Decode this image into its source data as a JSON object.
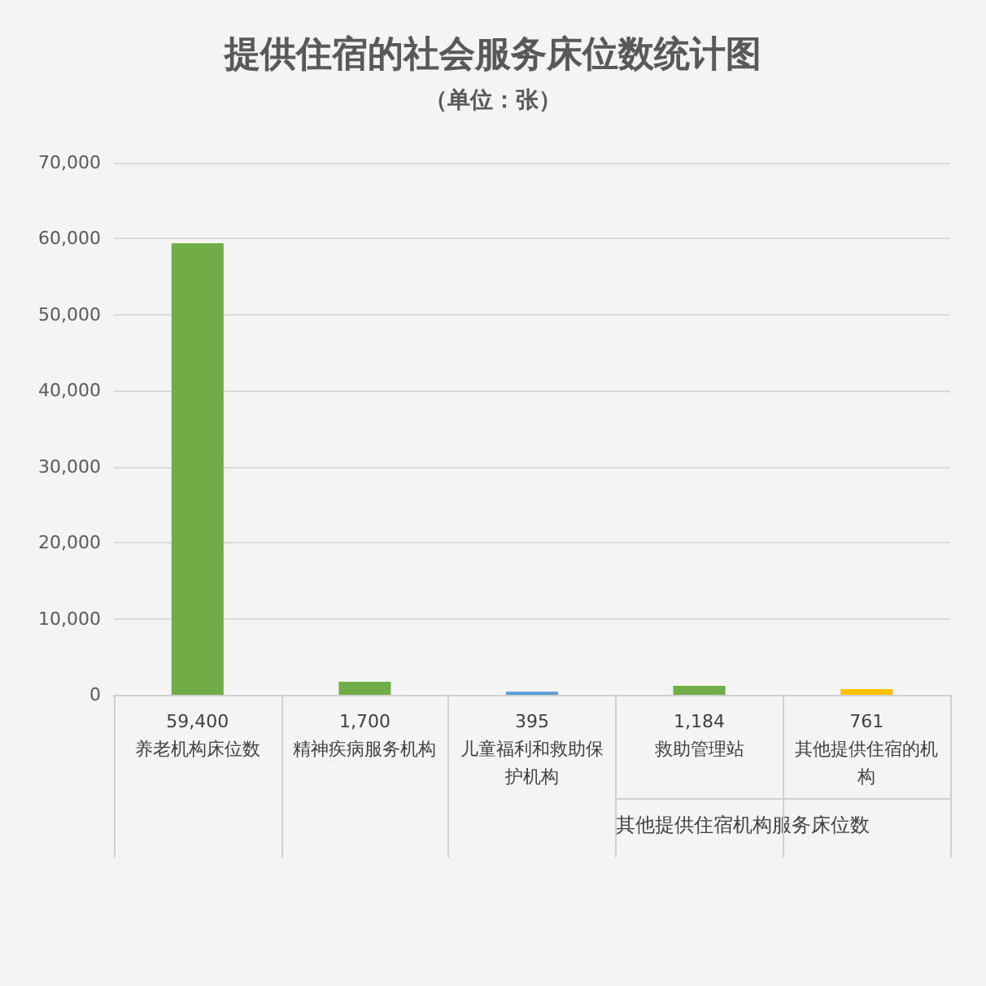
{
  "chart_data": {
    "type": "bar",
    "title": "提供住宿的社会服务床位数统计图",
    "subtitle": "（单位：张）",
    "categories": [
      "养老机构床位数",
      "精神疾病服务机构",
      "儿童福利和救助保护机构",
      "救助管理站",
      "其他提供住宿的机构"
    ],
    "values": [
      59400,
      1700,
      395,
      1184,
      761
    ],
    "value_labels": [
      "59,400",
      "1,700",
      "395",
      "1,184",
      "761"
    ],
    "colors": [
      "#70ad47",
      "#70ad47",
      "#5b9bd5",
      "#70ad47",
      "#ffc000"
    ],
    "ylim": [
      0,
      70000
    ],
    "yticks": [
      0,
      {
        "value": 10000,
        "label": "10,000"
      },
      {
        "value": 20000,
        "label": "20,000"
      },
      {
        "value": 30000,
        "label": "30,000"
      },
      {
        "value": 40000,
        "label": "40,000"
      },
      {
        "value": 50000,
        "label": "50,000"
      },
      {
        "value": 60000,
        "label": "60,000"
      },
      {
        "value": 70000,
        "label": "70,000"
      }
    ],
    "grid": "y",
    "annotations": [
      "其他提供住宿机构服务床位数"
    ]
  }
}
